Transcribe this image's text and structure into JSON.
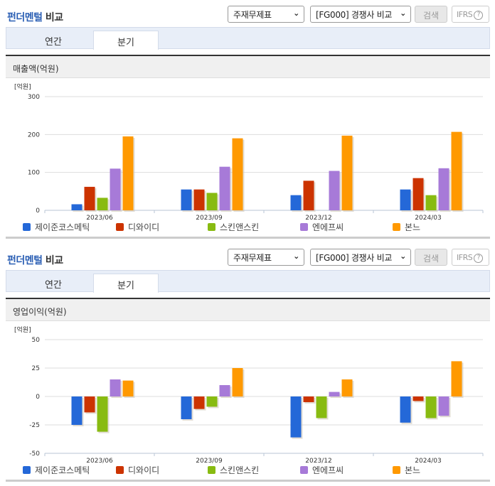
{
  "sections": [
    {
      "title_highlight": "펀더멘털",
      "title_rest": " 비교",
      "select1": "주재무제표",
      "select2": "[FG000] 경쟁사 비교",
      "search_label": "검색",
      "ifrs_label": "IFRS",
      "help_icon": "?",
      "tabs": [
        {
          "label": "연간",
          "active": false
        },
        {
          "label": "분기",
          "active": true
        }
      ],
      "panel_title": "매출액(억원)",
      "unit": "[억원]"
    },
    {
      "title_highlight": "펀더멘털",
      "title_rest": " 비교",
      "select1": "주재무제표",
      "select2": "[FG000] 경쟁사 비교",
      "search_label": "검색",
      "ifrs_label": "IFRS",
      "help_icon": "?",
      "tabs": [
        {
          "label": "연간",
          "active": false
        },
        {
          "label": "분기",
          "active": true
        }
      ],
      "panel_title": "영업이익(억원)",
      "unit": "[억원]"
    }
  ],
  "colors": {
    "series": [
      "#2468d8",
      "#cc3300",
      "#88bb11",
      "#a77ad8",
      "#ff9900"
    ],
    "title_accent": "#2b5fb4"
  },
  "chart_data": [
    {
      "type": "bar",
      "title": "매출액(억원)",
      "ylabel": "[억원]",
      "xlabel": "",
      "categories": [
        "2023/06",
        "2023/09",
        "2023/12",
        "2024/03"
      ],
      "ylim": [
        0,
        300
      ],
      "yticks": [
        0,
        100,
        200,
        300
      ],
      "grid": true,
      "legend_position": "bottom",
      "series": [
        {
          "name": "제이준코스메틱",
          "values": [
            16,
            55,
            40,
            55
          ]
        },
        {
          "name": "디와이디",
          "values": [
            62,
            55,
            78,
            85
          ]
        },
        {
          "name": "스킨앤스킨",
          "values": [
            33,
            46,
            0,
            40
          ]
        },
        {
          "name": "엔에프씨",
          "values": [
            110,
            115,
            104,
            111
          ]
        },
        {
          "name": "본느",
          "values": [
            195,
            190,
            197,
            207
          ]
        }
      ]
    },
    {
      "type": "bar",
      "title": "영업이익(억원)",
      "ylabel": "[억원]",
      "xlabel": "",
      "categories": [
        "2023/06",
        "2023/09",
        "2023/12",
        "2024/03"
      ],
      "ylim": [
        -50,
        50
      ],
      "yticks": [
        -50,
        -25,
        0,
        25,
        50
      ],
      "grid": true,
      "legend_position": "bottom",
      "series": [
        {
          "name": "제이준코스메틱",
          "values": [
            -25,
            -20,
            -36,
            -23
          ]
        },
        {
          "name": "디와이디",
          "values": [
            -14,
            -11,
            -5,
            -4
          ]
        },
        {
          "name": "스킨앤스킨",
          "values": [
            -31,
            -9,
            -19,
            -19
          ]
        },
        {
          "name": "엔에프씨",
          "values": [
            15,
            10,
            4,
            -17
          ]
        },
        {
          "name": "본느",
          "values": [
            14,
            25,
            15,
            31
          ]
        }
      ]
    }
  ]
}
